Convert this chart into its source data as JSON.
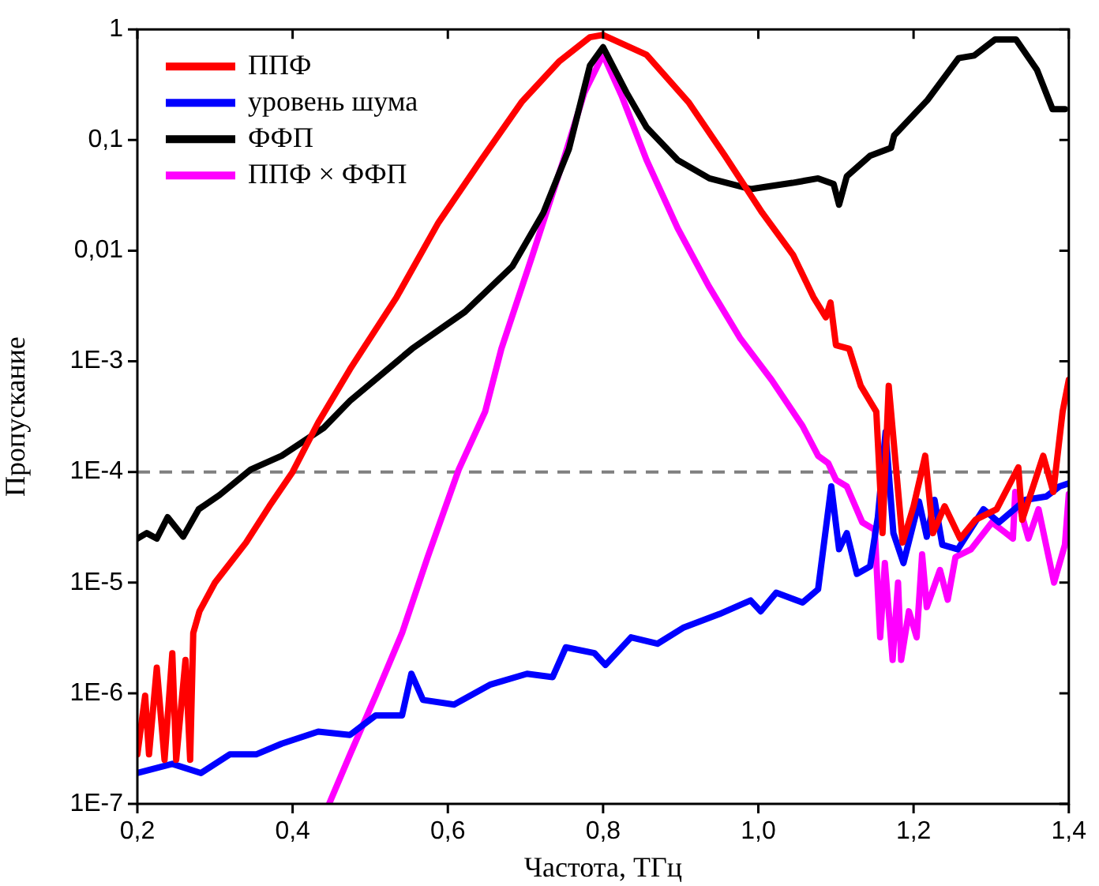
{
  "chart_data": {
    "type": "line",
    "xlabel": "Частота, ТГц",
    "ylabel": "Пропускание",
    "log": "y",
    "grid": false,
    "legend": "top left",
    "marker": "none",
    "line_style": "solid",
    "xlim": [
      0.2,
      1.4
    ],
    "xticks": [
      {
        "value": 0.2,
        "label": "0,2"
      },
      {
        "value": 0.4,
        "label": "0,4"
      },
      {
        "value": 0.6,
        "label": "0,6"
      },
      {
        "value": 0.8,
        "label": "0,8"
      },
      {
        "value": 1.0,
        "label": "1,0"
      },
      {
        "value": 1.2,
        "label": "1,2"
      },
      {
        "value": 1.4,
        "label": "1,4"
      }
    ],
    "ylim": [
      1e-07,
      1
    ],
    "yticks": [
      {
        "value": 1e-07,
        "label": "1E-7"
      },
      {
        "value": 1e-06,
        "label": "1E-6"
      },
      {
        "value": 1e-05,
        "label": "1E-5"
      },
      {
        "value": 0.0001,
        "label": "1E-4"
      },
      {
        "value": 0.001,
        "label": "1E-3"
      },
      {
        "value": 0.01,
        "label": "0,01"
      },
      {
        "value": 0.1,
        "label": "0,1"
      },
      {
        "value": 1,
        "label": "1"
      }
    ],
    "ref_lines": [
      {
        "axis": "y",
        "value": 0.0001,
        "label": null,
        "color": "#808080",
        "line_style": "dashed"
      }
    ],
    "series": [
      {
        "name": "ППФ",
        "color": "#ff0000",
        "x": [
          0.2,
          0.21,
          0.215,
          0.225,
          0.235,
          0.245,
          0.25,
          0.262,
          0.268,
          0.272,
          0.28,
          0.3,
          0.34,
          0.37,
          0.4,
          0.433,
          0.474,
          0.534,
          0.588,
          0.643,
          0.695,
          0.743,
          0.783,
          0.8,
          0.856,
          0.91,
          0.957,
          1.005,
          1.045,
          1.071,
          1.087,
          1.093,
          1.1,
          1.117,
          1.132,
          1.152,
          1.16,
          1.168,
          1.186,
          1.2,
          1.215,
          1.225,
          1.24,
          1.26,
          1.28,
          1.307,
          1.335,
          1.34,
          1.367,
          1.38,
          1.392,
          1.4
        ],
        "values": [
          2.8e-07,
          9.5e-07,
          2.8e-07,
          1.7e-06,
          2.5e-07,
          2.3e-06,
          2.5e-07,
          2e-06,
          2.5e-07,
          3.5e-06,
          5.5e-06,
          1e-05,
          2.3e-05,
          4.9e-05,
          0.0001,
          0.00028,
          0.00085,
          0.0038,
          0.018,
          0.066,
          0.22,
          0.51,
          0.85,
          0.89,
          0.59,
          0.22,
          0.072,
          0.022,
          0.0091,
          0.0038,
          0.0025,
          0.0034,
          0.0014,
          0.0013,
          0.0006,
          0.00035,
          2.8e-05,
          0.0006,
          2.3e-05,
          4.9e-05,
          0.00014,
          2.8e-05,
          4.9e-05,
          2.5e-05,
          3.7e-05,
          4.6e-05,
          0.00011,
          3.7e-05,
          0.00014,
          6.6e-05,
          0.00035,
          0.00068
        ]
      },
      {
        "name": "уровень шума",
        "color": "#0000ff",
        "x": [
          0.2,
          0.245,
          0.282,
          0.319,
          0.353,
          0.386,
          0.433,
          0.474,
          0.507,
          0.541,
          0.553,
          0.568,
          0.608,
          0.655,
          0.702,
          0.735,
          0.752,
          0.789,
          0.803,
          0.836,
          0.87,
          0.903,
          0.95,
          0.99,
          1.003,
          1.023,
          1.057,
          1.077,
          1.094,
          1.104,
          1.114,
          1.127,
          1.144,
          1.154,
          1.164,
          1.174,
          1.187,
          1.207,
          1.217,
          1.227,
          1.237,
          1.257,
          1.29,
          1.31,
          1.344,
          1.371,
          1.388,
          1.4
        ],
        "values": [
          1.9e-07,
          2.3e-07,
          1.9e-07,
          2.8e-07,
          2.8e-07,
          3.5e-07,
          4.5e-07,
          4.2e-07,
          6.3e-07,
          6.3e-07,
          1.5e-06,
          8.7e-07,
          7.9e-07,
          1.2e-06,
          1.5e-06,
          1.4e-06,
          2.6e-06,
          2.3e-06,
          1.8e-06,
          3.2e-06,
          2.8e-06,
          3.9e-06,
          5.2e-06,
          6.9e-06,
          5.5e-06,
          8.1e-06,
          6.6e-06,
          8.7e-06,
          7.4e-05,
          2e-05,
          2.8e-05,
          1.2e-05,
          1.4e-05,
          3.9e-05,
          0.00023,
          2.8e-05,
          1.5e-05,
          5.4e-05,
          2.6e-05,
          5.6e-05,
          2.2e-05,
          2e-05,
          4.6e-05,
          3.5e-05,
          5.6e-05,
          6e-05,
          7.4e-05,
          7.9e-05
        ]
      },
      {
        "name": "ФФП",
        "color": "#000000",
        "x": [
          0.2,
          0.212,
          0.225,
          0.239,
          0.259,
          0.279,
          0.306,
          0.346,
          0.386,
          0.44,
          0.474,
          0.554,
          0.622,
          0.683,
          0.723,
          0.756,
          0.783,
          0.8,
          0.83,
          0.856,
          0.896,
          0.937,
          0.99,
          1.044,
          1.077,
          1.097,
          1.104,
          1.114,
          1.144,
          1.171,
          1.175,
          1.218,
          1.258,
          1.278,
          1.305,
          1.332,
          1.359,
          1.379,
          1.395
        ],
        "values": [
          2.5e-05,
          2.8e-05,
          2.5e-05,
          3.9e-05,
          2.6e-05,
          4.6e-05,
          6.2e-05,
          0.000105,
          0.00014,
          0.00025,
          0.00044,
          0.0013,
          0.0028,
          0.0072,
          0.022,
          0.083,
          0.47,
          0.69,
          0.27,
          0.13,
          0.066,
          0.045,
          0.036,
          0.041,
          0.045,
          0.04,
          0.026,
          0.047,
          0.072,
          0.085,
          0.11,
          0.23,
          0.55,
          0.58,
          0.81,
          0.81,
          0.43,
          0.19,
          0.19
        ]
      },
      {
        "name": "ППФ × ФФП",
        "color": "#ff00ff",
        "x": [
          0.447,
          0.474,
          0.507,
          0.541,
          0.574,
          0.614,
          0.648,
          0.669,
          0.709,
          0.749,
          0.776,
          0.8,
          0.824,
          0.856,
          0.896,
          0.936,
          0.977,
          1.017,
          1.057,
          1.077,
          1.09,
          1.1,
          1.114,
          1.134,
          1.15,
          1.157,
          1.163,
          1.173,
          1.18,
          1.184,
          1.194,
          1.204,
          1.211,
          1.217,
          1.234,
          1.244,
          1.254,
          1.274,
          1.301,
          1.328,
          1.331,
          1.348,
          1.361,
          1.381,
          1.395,
          1.4
        ],
        "values": [
          1e-07,
          2.8e-07,
          9.5e-07,
          3.5e-06,
          1.7e-05,
          0.000105,
          0.00035,
          0.0013,
          0.0091,
          0.066,
          0.27,
          0.59,
          0.25,
          0.066,
          0.016,
          0.0048,
          0.0016,
          0.00068,
          0.00026,
          0.00014,
          0.00012,
          8.5e-05,
          7.4e-05,
          3.5e-05,
          3e-05,
          3.2e-06,
          1.5e-05,
          2e-06,
          1e-05,
          2e-06,
          5.5e-06,
          3.2e-06,
          1.8e-05,
          6e-06,
          1.3e-05,
          7e-06,
          1.7e-05,
          2e-05,
          3.5e-05,
          2.5e-05,
          6.6e-05,
          2.5e-05,
          4.6e-05,
          1e-05,
          2.2e-05,
          6.3e-05
        ]
      }
    ]
  }
}
